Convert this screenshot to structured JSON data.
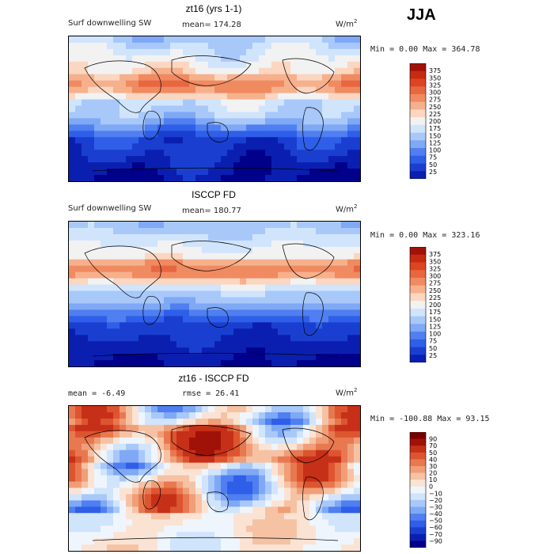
{
  "season": "JJA",
  "colors": {
    "abs_scale": [
      "#00008b",
      "#0a1fb0",
      "#1a3fd0",
      "#2f5fe8",
      "#4f7ff0",
      "#7fa8f5",
      "#a8c8fa",
      "#d0e4fc",
      "#f2f2f2",
      "#fbd6c0",
      "#f6b08c",
      "#f08a60",
      "#e86640",
      "#dd4422",
      "#c62a10",
      "#a01208",
      "#7a0000"
    ],
    "diff_scale": [
      "#00008b",
      "#0a1fb0",
      "#1a3fd0",
      "#2f5fe8",
      "#4f7ff0",
      "#7fa8f5",
      "#a8c8fa",
      "#d0e4fc",
      "#eef5fd",
      "#fbe3d4",
      "#f6c2a4",
      "#f09e78",
      "#e87850",
      "#dd5530",
      "#c63018",
      "#a01208",
      "#7a0000"
    ]
  },
  "panels": [
    {
      "title": "zt16 (yrs 1-1)",
      "field_label": "Surf downwelling SW",
      "mean_label": "mean= 174.28",
      "units": "W/m",
      "units_sup": "2",
      "minmax": "Min =    0.00 Max = 364.78"
    },
    {
      "title": "ISCCP FD",
      "field_label": "Surf downwelling SW",
      "mean_label": "mean= 180.77",
      "units": "W/m",
      "units_sup": "2",
      "minmax": "Min =    0.00 Max = 323.16"
    },
    {
      "title": "zt16 - ISCCP FD",
      "field_label": "mean =   -6.49",
      "mean_label": "rmse =  26.41",
      "units": "W/m",
      "units_sup": "2",
      "minmax": "Min = -100.88 Max =  93.15"
    }
  ],
  "chart_data": [
    {
      "type": "heatmap",
      "title": "zt16 (yrs 1-1)",
      "field": "Surf downwelling SW",
      "units": "W/m2",
      "mean": 174.28,
      "min": 0.0,
      "max": 364.78,
      "colorbar_levels": [
        25,
        50,
        75,
        100,
        125,
        150,
        175,
        200,
        225,
        250,
        275,
        300,
        325,
        350,
        375
      ],
      "colorbar_tick_labels": [
        "375",
        "350",
        "325",
        "300",
        "275",
        "250",
        "225",
        "200",
        "175",
        "150",
        "125",
        "100",
        "75",
        "50",
        "25"
      ]
    },
    {
      "type": "heatmap",
      "title": "ISCCP FD",
      "field": "Surf downwelling SW",
      "units": "W/m2",
      "mean": 180.77,
      "min": 0.0,
      "max": 323.16,
      "colorbar_levels": [
        25,
        50,
        75,
        100,
        125,
        150,
        175,
        200,
        225,
        250,
        275,
        300,
        325,
        350,
        375
      ],
      "colorbar_tick_labels": [
        "375",
        "350",
        "325",
        "300",
        "275",
        "250",
        "225",
        "200",
        "175",
        "150",
        "125",
        "100",
        "75",
        "50",
        "25"
      ]
    },
    {
      "type": "heatmap",
      "title": "zt16 - ISCCP FD",
      "units": "W/m2",
      "mean": -6.49,
      "rmse": 26.41,
      "min": -100.88,
      "max": 93.15,
      "colorbar_levels": [
        -90,
        -70,
        -60,
        -50,
        -40,
        -30,
        -20,
        -10,
        0,
        10,
        20,
        30,
        40,
        50,
        70,
        90
      ],
      "colorbar_tick_labels": [
        "90",
        "70",
        "50",
        "40",
        "30",
        "20",
        "10",
        "0",
        "−10",
        "−20",
        "−30",
        "−40",
        "−50",
        "−60",
        "−70",
        "−90"
      ]
    }
  ]
}
